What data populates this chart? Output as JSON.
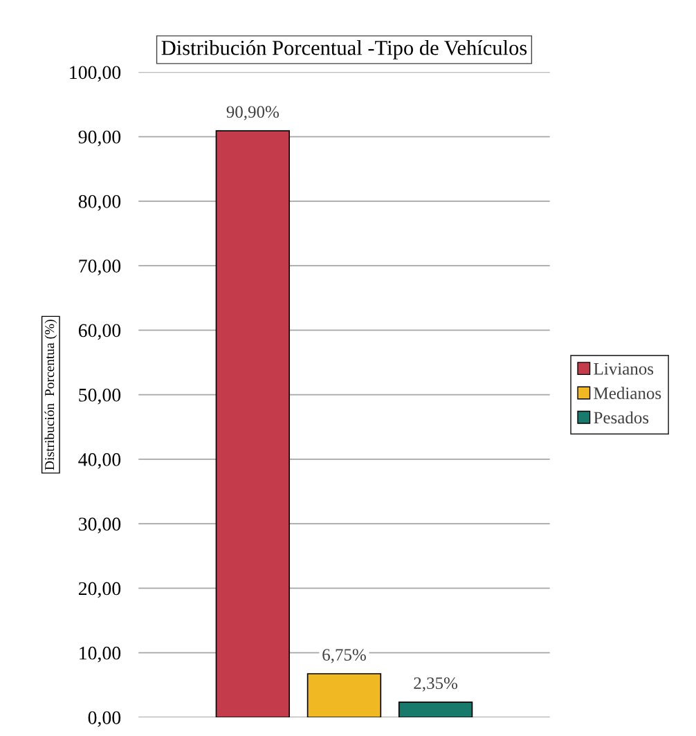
{
  "chart_data": {
    "type": "bar",
    "title": "Distribución Porcentual -Tipo de Vehículos",
    "ylabel": "Distribución  Porcentua (%)",
    "categories": [
      null,
      null,
      null
    ],
    "series": [
      {
        "name": "Livianos",
        "color": "#c43b4c",
        "values": [
          90.9,
          null,
          null
        ],
        "value_labels": [
          "90,90%",
          null,
          null
        ]
      },
      {
        "name": "Medianos",
        "color": "#f0b823",
        "values": [
          null,
          6.75,
          null
        ],
        "value_labels": [
          null,
          "6,75%",
          null
        ]
      },
      {
        "name": "Pesados",
        "color": "#177a6b",
        "values": [
          null,
          null,
          2.35
        ],
        "value_labels": [
          null,
          null,
          "2,35%"
        ]
      }
    ],
    "ylim": [
      0,
      100
    ],
    "yticks": [
      {
        "value": 0,
        "label": "0,00"
      },
      {
        "value": 10,
        "label": "10,00"
      },
      {
        "value": 20,
        "label": "20,00"
      },
      {
        "value": 30,
        "label": "30,00"
      },
      {
        "value": 40,
        "label": "40,00"
      },
      {
        "value": 50,
        "label": "50,00"
      },
      {
        "value": 60,
        "label": "60,00"
      },
      {
        "value": 70,
        "label": "70,00"
      },
      {
        "value": 80,
        "label": "80,00"
      },
      {
        "value": 90,
        "label": "90,00"
      },
      {
        "value": 100,
        "label": "100,00"
      }
    ],
    "grid": "y",
    "legend": "right"
  }
}
